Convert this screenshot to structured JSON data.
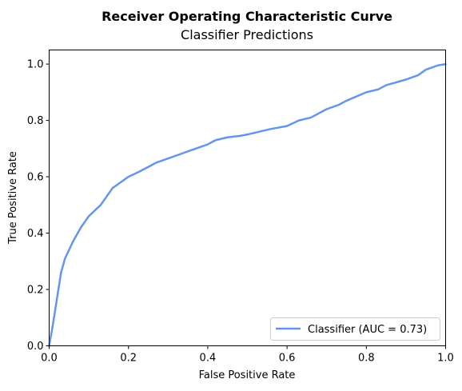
{
  "chart_data": {
    "type": "line",
    "title": "Receiver Operating Characteristic Curve",
    "subtitle": "Classifier Predictions",
    "xlabel": "False Positive Rate",
    "ylabel": "True Positive Rate",
    "xlim": [
      0.0,
      1.0
    ],
    "ylim": [
      0.0,
      1.05
    ],
    "x_ticks": [
      "0.0",
      "0.2",
      "0.4",
      "0.6",
      "0.8",
      "1.0"
    ],
    "y_ticks": [
      "0.0",
      "0.2",
      "0.4",
      "0.6",
      "0.8",
      "1.0"
    ],
    "grid": false,
    "legend": {
      "position": "lower-right",
      "entries": [
        "Classifier (AUC = 0.73)"
      ]
    },
    "series": [
      {
        "name": "Classifier (AUC = 0.73)",
        "color": "#6495ed",
        "x": [
          0.0,
          0.01,
          0.02,
          0.03,
          0.04,
          0.06,
          0.08,
          0.1,
          0.13,
          0.14,
          0.15,
          0.16,
          0.18,
          0.2,
          0.23,
          0.25,
          0.27,
          0.3,
          0.33,
          0.36,
          0.38,
          0.4,
          0.42,
          0.45,
          0.48,
          0.5,
          0.53,
          0.56,
          0.6,
          0.63,
          0.66,
          0.7,
          0.73,
          0.75,
          0.8,
          0.83,
          0.85,
          0.9,
          0.93,
          0.95,
          0.98,
          1.0
        ],
        "y": [
          0.0,
          0.08,
          0.17,
          0.26,
          0.31,
          0.37,
          0.42,
          0.46,
          0.5,
          0.52,
          0.54,
          0.56,
          0.58,
          0.6,
          0.62,
          0.635,
          0.65,
          0.665,
          0.68,
          0.695,
          0.705,
          0.715,
          0.73,
          0.74,
          0.745,
          0.75,
          0.76,
          0.77,
          0.78,
          0.8,
          0.81,
          0.84,
          0.855,
          0.87,
          0.9,
          0.91,
          0.925,
          0.945,
          0.96,
          0.98,
          0.995,
          1.0
        ]
      }
    ]
  }
}
